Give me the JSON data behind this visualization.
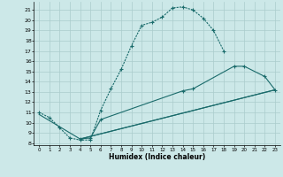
{
  "xlabel": "Humidex (Indice chaleur)",
  "bg_color": "#cce8e8",
  "grid_color": "#aacccc",
  "line_color": "#1a6b6b",
  "xlim": [
    -0.5,
    23.5
  ],
  "ylim": [
    7.8,
    21.8
  ],
  "xticks": [
    0,
    1,
    2,
    3,
    4,
    5,
    6,
    7,
    8,
    9,
    10,
    11,
    12,
    13,
    14,
    15,
    16,
    17,
    18,
    19,
    20,
    21,
    22,
    23
  ],
  "yticks": [
    8,
    9,
    10,
    11,
    12,
    13,
    14,
    15,
    16,
    17,
    18,
    19,
    20,
    21
  ],
  "line1_x": [
    0,
    1,
    2,
    3,
    4,
    5,
    6,
    7,
    8,
    9,
    10,
    11,
    12,
    13,
    14,
    15,
    16,
    17,
    18
  ],
  "line1_y": [
    11.0,
    10.5,
    9.5,
    8.5,
    8.3,
    8.3,
    11.2,
    13.3,
    15.2,
    17.5,
    19.5,
    19.8,
    20.3,
    21.2,
    21.3,
    21.0,
    20.2,
    19.0,
    17.0
  ],
  "line2_x": [
    4,
    5,
    6,
    14,
    15,
    19,
    20,
    22,
    23
  ],
  "line2_y": [
    8.4,
    8.5,
    10.3,
    13.1,
    13.3,
    15.5,
    15.5,
    14.5,
    13.2
  ],
  "line3_x": [
    0,
    4,
    23
  ],
  "line3_y": [
    10.8,
    8.4,
    13.2
  ],
  "line4_x": [
    4,
    23
  ],
  "line4_y": [
    8.4,
    13.2
  ]
}
